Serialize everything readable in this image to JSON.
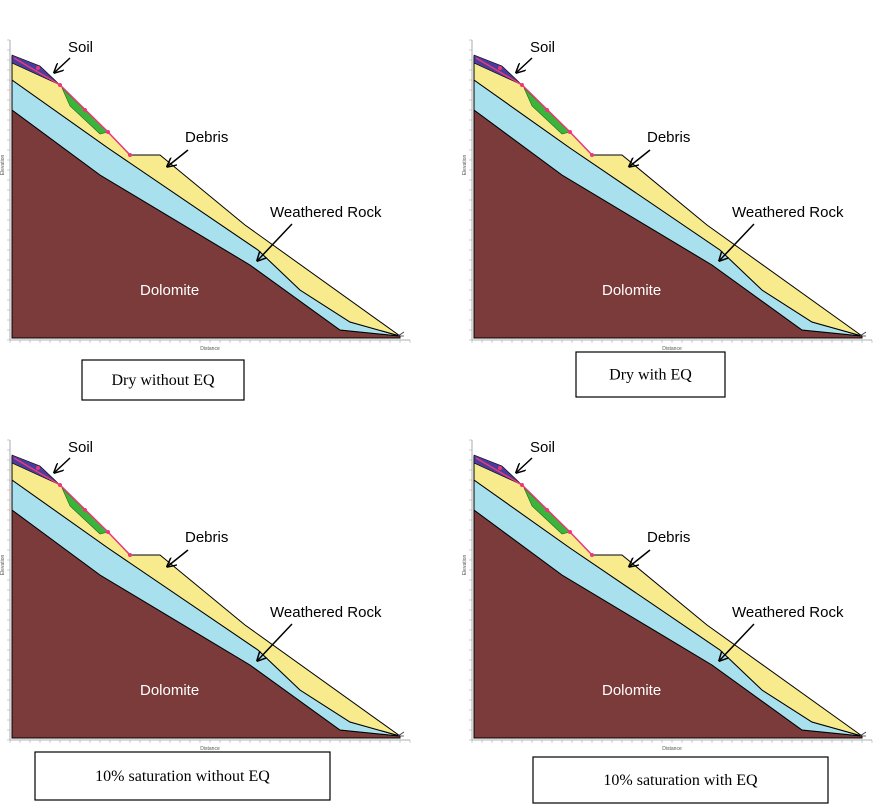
{
  "panels": [
    {
      "labels": {
        "soil": "Soil",
        "debris": "Debris",
        "weathered_rock": "Weathered Rock",
        "dolomite": "Dolomite"
      },
      "axis": {
        "y": "Elevation",
        "x": "Distance"
      },
      "caption": "Dry without EQ"
    },
    {
      "labels": {
        "soil": "Soil",
        "debris": "Debris",
        "weathered_rock": "Weathered Rock",
        "dolomite": "Dolomite"
      },
      "axis": {
        "y": "Elevation",
        "x": "Distance"
      },
      "caption": "Dry with EQ"
    },
    {
      "labels": {
        "soil": "Soil",
        "debris": "Debris",
        "weathered_rock": "Weathered Rock",
        "dolomite": "Dolomite"
      },
      "axis": {
        "y": "Elevation",
        "x": "Distance"
      },
      "caption": "10% saturation without EQ"
    },
    {
      "labels": {
        "soil": "Soil",
        "debris": "Debris",
        "weathered_rock": "Weathered Rock",
        "dolomite": "Dolomite"
      },
      "axis": {
        "y": "Elevation",
        "x": "Distance"
      },
      "caption": "10% saturation with EQ"
    }
  ]
}
